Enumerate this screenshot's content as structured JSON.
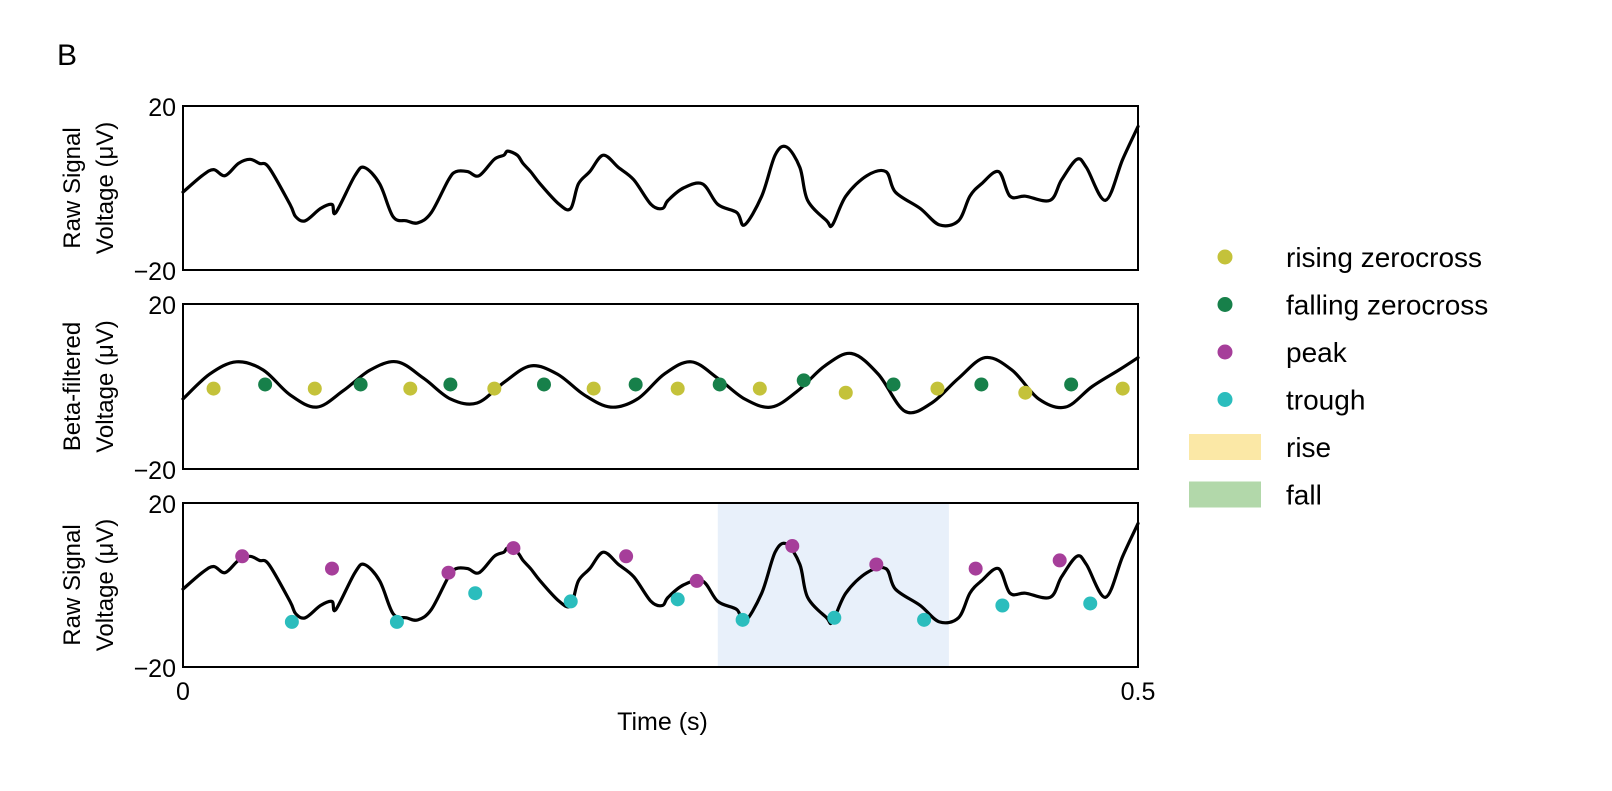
{
  "figure": {
    "panel_label": "B"
  },
  "colors": {
    "signal": "#000000",
    "rising_zerocross": "#c4c23a",
    "falling_zerocross": "#17804a",
    "peak": "#a63e9a",
    "trough": "#2bbdbd",
    "rise": "#fbe8a6",
    "fall": "#b2d8aa",
    "highlight": "#e8f0fa"
  },
  "legend": [
    {
      "key": "rising",
      "label": "rising zerocross",
      "marker": "dot",
      "color": "#c4c23a"
    },
    {
      "key": "falling",
      "label": "falling zerocross",
      "marker": "dot",
      "color": "#17804a"
    },
    {
      "key": "peak",
      "label": "peak",
      "marker": "dot",
      "color": "#a63e9a"
    },
    {
      "key": "trough",
      "label": "trough",
      "marker": "dot",
      "color": "#2bbdbd"
    },
    {
      "key": "rise",
      "label": "rise",
      "marker": "patch",
      "color": "#fbe8a6"
    },
    {
      "key": "fall",
      "label": "fall",
      "marker": "patch",
      "color": "#b2d8aa"
    }
  ],
  "chart_data": [
    {
      "type": "line",
      "ylabel_lines": [
        "Raw Signal",
        "Voltage (μV)"
      ],
      "ytick_labels": [
        "20",
        "−20"
      ],
      "ylim": [
        -20,
        20
      ],
      "xlim": [
        0,
        0.5
      ],
      "grid": false,
      "series": [
        {
          "x": [
            0,
            0.01,
            0.016,
            0.022,
            0.029,
            0.035,
            0.04,
            0.045,
            0.056,
            0.059,
            0.064,
            0.072,
            0.078,
            0.08,
            0.09,
            0.095,
            0.103,
            0.11,
            0.117,
            0.123,
            0.13,
            0.139,
            0.143,
            0.149,
            0.155,
            0.163,
            0.168,
            0.17,
            0.175,
            0.178,
            0.182,
            0.187,
            0.197,
            0.203,
            0.207,
            0.213,
            0.22,
            0.228,
            0.236,
            0.245,
            0.251,
            0.254,
            0.262,
            0.272,
            0.28,
            0.29,
            0.294,
            0.303,
            0.31,
            0.316,
            0.323,
            0.327,
            0.337,
            0.34,
            0.347,
            0.358,
            0.368,
            0.373,
            0.386,
            0.396,
            0.406,
            0.412,
            0.418,
            0.427,
            0.433,
            0.441,
            0.454,
            0.46,
            0.468,
            0.473,
            0.483,
            0.492,
            0.5
          ],
          "y": [
            -1,
            3,
            4.5,
            3,
            6,
            7,
            6,
            5,
            -4,
            -7,
            -8,
            -5,
            -4,
            -6,
            3,
            5,
            1,
            -7,
            -8,
            -8.5,
            -6,
            2,
            4,
            4,
            3,
            7,
            8,
            9,
            8,
            6,
            4,
            1,
            -4,
            -5,
            1,
            4,
            8,
            5,
            2,
            -4,
            -5,
            -3,
            0,
            1,
            -4,
            -6,
            -9,
            -2,
            8,
            10,
            5,
            -3,
            -8,
            -9,
            -2,
            3,
            4,
            -1,
            -5,
            -9,
            -8,
            -2,
            1,
            4,
            -2,
            -2,
            -3,
            2,
            7,
            5,
            -3,
            7,
            15
          ]
        }
      ]
    },
    {
      "type": "line",
      "ylabel_lines": [
        "Beta-filtered",
        "Voltage (μV)"
      ],
      "ytick_labels": [
        "20",
        "−20"
      ],
      "ylim": [
        -20,
        20
      ],
      "xlim": [
        0,
        0.5
      ],
      "grid": false,
      "series": [
        {
          "x": [
            0,
            0.014,
            0.028,
            0.042,
            0.056,
            0.07,
            0.084,
            0.098,
            0.112,
            0.126,
            0.14,
            0.154,
            0.168,
            0.182,
            0.196,
            0.21,
            0.224,
            0.238,
            0.252,
            0.266,
            0.28,
            0.294,
            0.308,
            0.322,
            0.336,
            0.35,
            0.364,
            0.378,
            0.392,
            0.406,
            0.42,
            0.434,
            0.448,
            0.462,
            0.476,
            0.49,
            0.5
          ],
          "y": [
            -3,
            3,
            6,
            4,
            -2,
            -5,
            -1,
            4,
            6,
            2,
            -3,
            -4,
            1,
            5,
            3,
            -2,
            -5,
            -3,
            3,
            6,
            2,
            -3,
            -5,
            -1,
            5,
            8,
            3,
            -6,
            -4,
            2,
            7,
            4,
            -3,
            -5,
            0,
            4,
            7
          ]
        }
      ]
    },
    {
      "type": "line",
      "ylabel_lines": [
        "Raw Signal",
        "Voltage (μV)"
      ],
      "ytick_labels": [
        "20",
        "−20"
      ],
      "ylim": [
        -20,
        20
      ],
      "xlim": [
        0,
        0.5
      ],
      "xlabel": "Time (s)",
      "xtick_labels": [
        "0",
        "0.5"
      ],
      "grid": false,
      "highlight": [
        0.28,
        0.401
      ],
      "series": [
        {
          "x": [
            0,
            0.01,
            0.016,
            0.022,
            0.029,
            0.035,
            0.04,
            0.045,
            0.056,
            0.059,
            0.064,
            0.072,
            0.078,
            0.08,
            0.09,
            0.095,
            0.103,
            0.11,
            0.117,
            0.123,
            0.13,
            0.139,
            0.143,
            0.149,
            0.155,
            0.163,
            0.168,
            0.17,
            0.175,
            0.178,
            0.182,
            0.187,
            0.197,
            0.203,
            0.207,
            0.213,
            0.22,
            0.228,
            0.236,
            0.245,
            0.251,
            0.254,
            0.262,
            0.272,
            0.28,
            0.29,
            0.294,
            0.303,
            0.31,
            0.316,
            0.323,
            0.327,
            0.337,
            0.34,
            0.347,
            0.358,
            0.368,
            0.373,
            0.386,
            0.396,
            0.406,
            0.412,
            0.418,
            0.427,
            0.433,
            0.441,
            0.454,
            0.46,
            0.468,
            0.473,
            0.483,
            0.492,
            0.5
          ],
          "y": [
            -1,
            3,
            4.5,
            3,
            6,
            7,
            6,
            5,
            -4,
            -7,
            -8,
            -5,
            -4,
            -6,
            3,
            5,
            1,
            -7,
            -8,
            -8.5,
            -6,
            2,
            4,
            4,
            3,
            7,
            8,
            9,
            8,
            6,
            4,
            1,
            -4,
            -5,
            1,
            4,
            8,
            5,
            2,
            -4,
            -5,
            -3,
            0,
            1,
            -4,
            -6,
            -9,
            -2,
            8,
            10,
            5,
            -3,
            -8,
            -9,
            -2,
            3,
            4,
            -1,
            -5,
            -9,
            -8,
            -2,
            1,
            4,
            -2,
            -2,
            -3,
            2,
            7,
            5,
            -3,
            7,
            15
          ]
        }
      ]
    }
  ],
  "markers": {
    "rising": [
      [
        0.016,
        -0.5
      ],
      [
        0.069,
        -0.5
      ],
      [
        0.119,
        -0.5
      ],
      [
        0.163,
        -0.5
      ],
      [
        0.215,
        -0.5
      ],
      [
        0.259,
        -0.5
      ],
      [
        0.302,
        -0.5
      ],
      [
        0.347,
        -1.5
      ],
      [
        0.395,
        -0.5
      ],
      [
        0.441,
        -1.5
      ],
      [
        0.492,
        -0.5
      ]
    ],
    "falling": [
      [
        0.043,
        0.5
      ],
      [
        0.093,
        0.5
      ],
      [
        0.14,
        0.5
      ],
      [
        0.189,
        0.5
      ],
      [
        0.237,
        0.5
      ],
      [
        0.281,
        0.5
      ],
      [
        0.325,
        1.5
      ],
      [
        0.372,
        0.5
      ],
      [
        0.418,
        0.5
      ],
      [
        0.465,
        0.5
      ]
    ],
    "peak": [
      [
        0.031,
        7
      ],
      [
        0.078,
        4
      ],
      [
        0.139,
        3
      ],
      [
        0.173,
        9
      ],
      [
        0.232,
        7
      ],
      [
        0.269,
        1
      ],
      [
        0.319,
        9.5
      ],
      [
        0.363,
        5
      ],
      [
        0.415,
        4
      ],
      [
        0.459,
        6
      ]
    ],
    "trough": [
      [
        0.057,
        -9
      ],
      [
        0.112,
        -9
      ],
      [
        0.153,
        -2
      ],
      [
        0.203,
        -4
      ],
      [
        0.259,
        -3.5
      ],
      [
        0.293,
        -8.5
      ],
      [
        0.341,
        -8
      ],
      [
        0.388,
        -8.5
      ],
      [
        0.429,
        -5
      ],
      [
        0.475,
        -4.5
      ]
    ]
  }
}
